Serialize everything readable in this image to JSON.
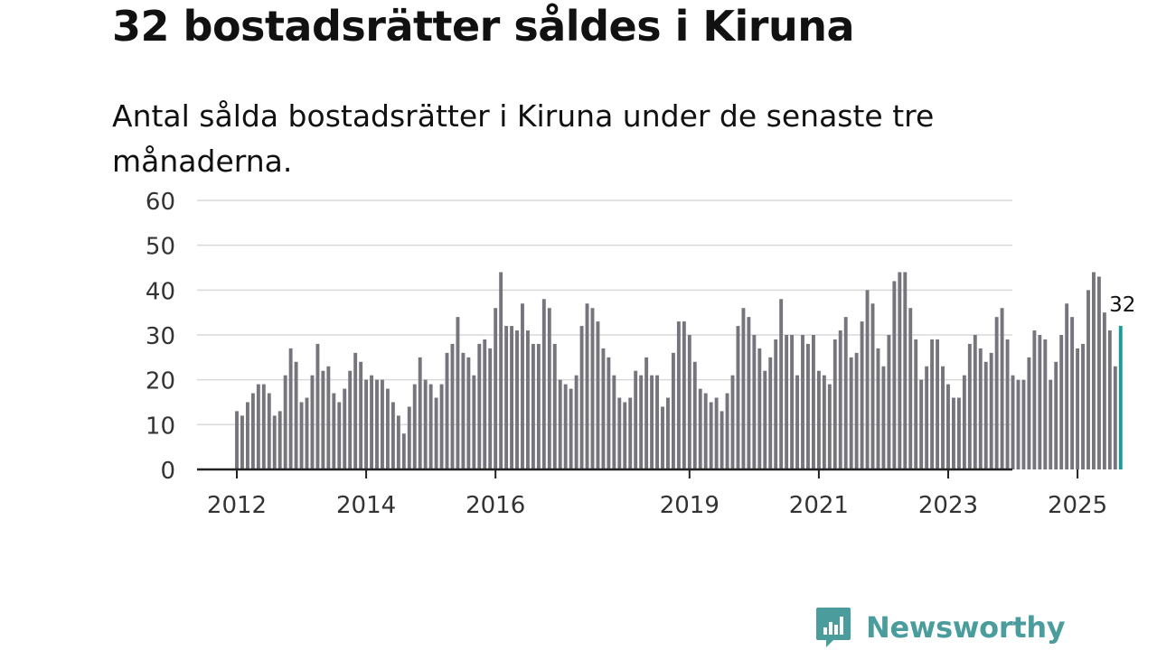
{
  "title": "32 bostadsrätter såldes i Kiruna",
  "subtitle": "Antal sålda bostadsrätter i Kiruna under de senaste tre månaderna.",
  "brand": {
    "name": "Newsworthy",
    "icon": "newsworthy-logo-icon",
    "color": "#4a9d9c"
  },
  "colors": {
    "bar": "#76757d",
    "highlight": "#1a9c97",
    "grid": "#d9d9d9",
    "axis": "#222222"
  },
  "chart_data": {
    "type": "bar",
    "title": "32 bostadsrätter såldes i Kiruna",
    "xlabel": "",
    "ylabel": "",
    "ylim": [
      0,
      60
    ],
    "yticks": [
      0,
      10,
      20,
      30,
      40,
      50,
      60
    ],
    "grid": true,
    "legend": "none",
    "start_year": 2012,
    "start_month": 1,
    "xticks": [
      {
        "label": "2012",
        "index": 0
      },
      {
        "label": "2014",
        "index": 24
      },
      {
        "label": "2016",
        "index": 48
      },
      {
        "label": "2019",
        "index": 84
      },
      {
        "label": "2021",
        "index": 108
      },
      {
        "label": "2023",
        "index": 132
      },
      {
        "label": "2025",
        "index": 156
      }
    ],
    "values": [
      13,
      12,
      15,
      17,
      19,
      19,
      17,
      12,
      13,
      21,
      27,
      24,
      15,
      16,
      21,
      28,
      22,
      23,
      17,
      15,
      18,
      22,
      26,
      24,
      20,
      21,
      20,
      20,
      18,
      15,
      12,
      8,
      14,
      19,
      25,
      20,
      19,
      16,
      19,
      26,
      28,
      34,
      26,
      25,
      21,
      28,
      29,
      27,
      36,
      44,
      32,
      32,
      31,
      37,
      31,
      28,
      28,
      38,
      36,
      28,
      20,
      19,
      18,
      21,
      32,
      37,
      36,
      33,
      27,
      25,
      21,
      16,
      15,
      16,
      22,
      21,
      25,
      21,
      21,
      14,
      16,
      26,
      33,
      33,
      30,
      24,
      18,
      17,
      15,
      16,
      13,
      17,
      21,
      32,
      36,
      34,
      30,
      27,
      22,
      25,
      29,
      38,
      30,
      30,
      21,
      30,
      28,
      30,
      22,
      21,
      19,
      29,
      31,
      34,
      25,
      26,
      33,
      40,
      37,
      27,
      23,
      30,
      42,
      44,
      44,
      36,
      29,
      20,
      23,
      29,
      29,
      23,
      19,
      16,
      16,
      21,
      28,
      30,
      27,
      24,
      26,
      34,
      36,
      29,
      21,
      20,
      20,
      25,
      31,
      30,
      29,
      20,
      24,
      30,
      37,
      34,
      27,
      28,
      40,
      44,
      43,
      35,
      31,
      23,
      32
    ],
    "highlight": {
      "index": 164,
      "value": 32,
      "label": "32"
    }
  }
}
